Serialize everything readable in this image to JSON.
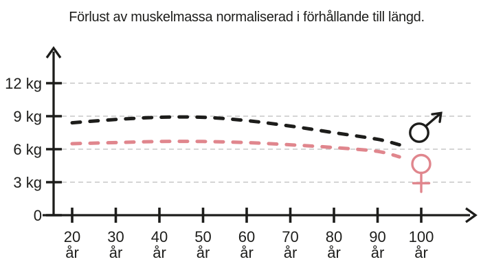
{
  "title": "Förlust av muskelmassa normaliserad i förhållande till längd.",
  "colors": {
    "male": "#1d1d1b",
    "female": "#e0868d",
    "axis": "#1d1d1b",
    "text": "#1d1d1b",
    "gridline": "#c6c6c6",
    "background": "#ffffff"
  },
  "chart_data": {
    "type": "line",
    "title": "Förlust av muskelmassa normaliserad i förhållande till längd.",
    "xlabel": "",
    "ylabel": "",
    "x_unit": "år",
    "y_unit": "kg",
    "xlim": [
      20,
      100
    ],
    "ylim": [
      0,
      13.5
    ],
    "grid": "horizontal dashed lines at 3, 6, 9, 12 kg",
    "line_style": "dashed",
    "x_ticks": [
      {
        "value": 20,
        "label": "20"
      },
      {
        "value": 30,
        "label": "30"
      },
      {
        "value": 40,
        "label": "40"
      },
      {
        "value": 50,
        "label": "50"
      },
      {
        "value": 60,
        "label": "60"
      },
      {
        "value": 70,
        "label": "70"
      },
      {
        "value": 80,
        "label": "80"
      },
      {
        "value": 90,
        "label": "90"
      },
      {
        "value": 100,
        "label": "100"
      }
    ],
    "y_ticks": [
      {
        "value": 0,
        "label": "0"
      },
      {
        "value": 3,
        "label": "3 kg"
      },
      {
        "value": 6,
        "label": "6 kg"
      },
      {
        "value": 9,
        "label": "9 kg"
      },
      {
        "value": 12,
        "label": "12 kg"
      }
    ],
    "legend_position": "right of curve ends",
    "series": [
      {
        "id": "male",
        "legend_symbol": "♂",
        "color": "#1d1d1b",
        "style": "dashed",
        "x": [
          20,
          30,
          40,
          50,
          60,
          70,
          80,
          90,
          95
        ],
        "values": [
          8.4,
          8.7,
          8.9,
          8.9,
          8.6,
          8.1,
          7.5,
          6.9,
          6.4
        ]
      },
      {
        "id": "female",
        "legend_symbol": "♀",
        "color": "#e0868d",
        "style": "dashed",
        "x": [
          20,
          30,
          40,
          50,
          60,
          70,
          80,
          90,
          95
        ],
        "values": [
          6.5,
          6.6,
          6.7,
          6.7,
          6.6,
          6.4,
          6.15,
          5.8,
          5.3
        ]
      }
    ]
  }
}
